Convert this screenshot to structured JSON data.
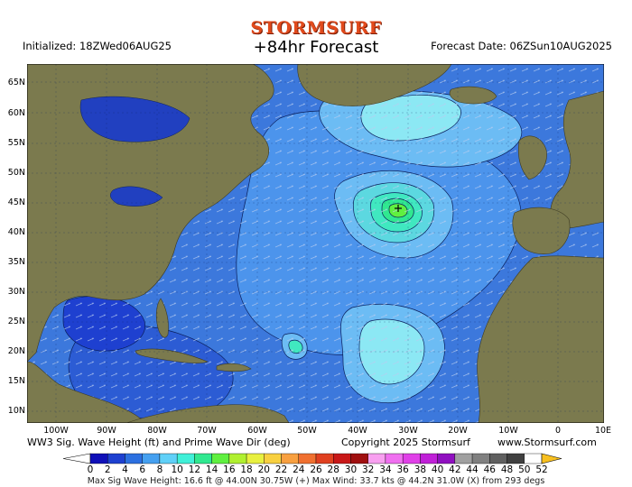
{
  "header": {
    "logo_text": "STORMSURF",
    "forecast_title": "+84hr Forecast",
    "initialized": "Initialized: 18ZWed06AUG25",
    "forecast_date": "Forecast Date: 06ZSun10AUG2025"
  },
  "map": {
    "region": "North Atlantic",
    "lat_labels": [
      "65N",
      "60N",
      "55N",
      "50N",
      "45N",
      "40N",
      "35N",
      "30N",
      "25N",
      "20N",
      "15N",
      "10N"
    ],
    "lon_labels": [
      "100W",
      "90W",
      "80W",
      "70W",
      "60W",
      "50W",
      "40W",
      "30W",
      "20W",
      "10W",
      "0",
      "10E"
    ],
    "land_color": "#7b7a4e",
    "ocean_base_color": "#3c78dc",
    "wave_arrow_icon": "arrow-icon"
  },
  "footer": {
    "product": "WW3 Sig. Wave Height (ft) and Prime Wave Dir (deg)",
    "copyright": "Copyright 2025 Stormsurf",
    "website": "www.Stormsurf.com",
    "stats": "Max Sig Wave Height: 16.6 ft @ 44.00N 30.75W (+)  Max Wind: 33.7 kts @ 44.2N 31.0W (X) from 293 degs"
  },
  "color_scale": {
    "labels": [
      "0",
      "2",
      "4",
      "6",
      "8",
      "10",
      "12",
      "14",
      "16",
      "18",
      "20",
      "22",
      "24",
      "26",
      "28",
      "30",
      "32",
      "34",
      "36",
      "38",
      "40",
      "42",
      "44",
      "46",
      "48",
      "50",
      "52"
    ],
    "colors": [
      "#1010b8",
      "#1e40d0",
      "#2c70e0",
      "#45a0f0",
      "#60d0f8",
      "#40f0d8",
      "#30e890",
      "#60f040",
      "#b0f030",
      "#e8f040",
      "#f8d040",
      "#f8a040",
      "#f07030",
      "#e04020",
      "#c81818",
      "#a01010",
      "#f8a0f0",
      "#f070f0",
      "#e040e8",
      "#c020d8",
      "#9010c0",
      "#a0a0a0",
      "#808080",
      "#606060",
      "#404040",
      "#ffffff"
    ],
    "end_left_color": "#ffffff",
    "end_right_color": "#f8c020"
  }
}
